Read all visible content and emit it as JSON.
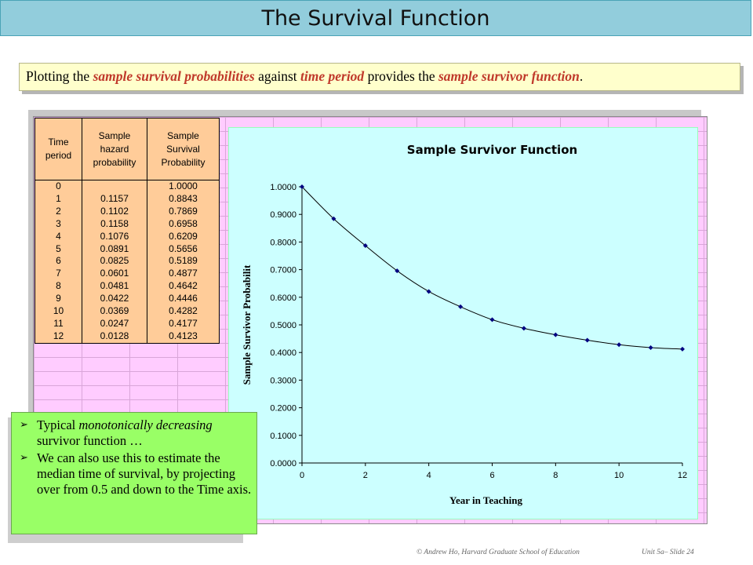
{
  "title": "The Survival Function",
  "subtitle": {
    "part1": "Plotting the ",
    "em1": "sample survival probabilities",
    "part2": " against ",
    "em2": "time period",
    "part3": " provides the ",
    "em3": "sample survivor function",
    "part4": "."
  },
  "table": {
    "headers": [
      "Time\nperiod",
      "Sample\nhazard\nprobability",
      "Sample\nSurvival\nProbability"
    ],
    "rows": [
      [
        "0",
        "",
        "1.0000"
      ],
      [
        "1",
        "0.1157",
        "0.8843"
      ],
      [
        "2",
        "0.1102",
        "0.7869"
      ],
      [
        "3",
        "0.1158",
        "0.6958"
      ],
      [
        "4",
        "0.1076",
        "0.6209"
      ],
      [
        "5",
        "0.0891",
        "0.5656"
      ],
      [
        "6",
        "0.0825",
        "0.5189"
      ],
      [
        "7",
        "0.0601",
        "0.4877"
      ],
      [
        "8",
        "0.0481",
        "0.4642"
      ],
      [
        "9",
        "0.0422",
        "0.4446"
      ],
      [
        "10",
        "0.0369",
        "0.4282"
      ],
      [
        "11",
        "0.0247",
        "0.4177"
      ],
      [
        "12",
        "0.0128",
        "0.4123"
      ]
    ]
  },
  "chart_data": {
    "type": "line",
    "title": "Sample Survivor Function",
    "xlabel": "Year in Teaching",
    "ylabel": "Sample Survivor Probabilit",
    "x": [
      0,
      1,
      2,
      3,
      4,
      5,
      6,
      7,
      8,
      9,
      10,
      11,
      12
    ],
    "series": [
      {
        "values": [
          1.0,
          0.8843,
          0.7869,
          0.6958,
          0.6209,
          0.5656,
          0.5189,
          0.4877,
          0.4642,
          0.4446,
          0.4282,
          0.4177,
          0.4123
        ]
      }
    ],
    "xlim": [
      0,
      12
    ],
    "ylim": [
      0,
      1
    ],
    "xticks": [
      "0",
      "2",
      "4",
      "6",
      "8",
      "10",
      "12"
    ],
    "yticks": [
      "0.0000",
      "0.1000",
      "0.2000",
      "0.3000",
      "0.4000",
      "0.5000",
      "0.6000",
      "0.7000",
      "0.8000",
      "0.9000",
      "1.0000"
    ],
    "grid": false,
    "legend": "none",
    "line_color": "#000000",
    "marker_color": "#000080"
  },
  "bullets": [
    {
      "arrow": "➢",
      "pre": "Typical ",
      "em": "monotonically decreasing",
      "post": " survivor function …"
    },
    {
      "arrow": "➢",
      "pre": "We can also use this to estimate the median time of survival, by projecting over from 0.5 and down to the Time axis.",
      "em": "",
      "post": ""
    }
  ],
  "footer": {
    "left": "© Andrew Ho, Harvard Graduate School of Education",
    "right": "Unit 5a– Slide 24"
  }
}
